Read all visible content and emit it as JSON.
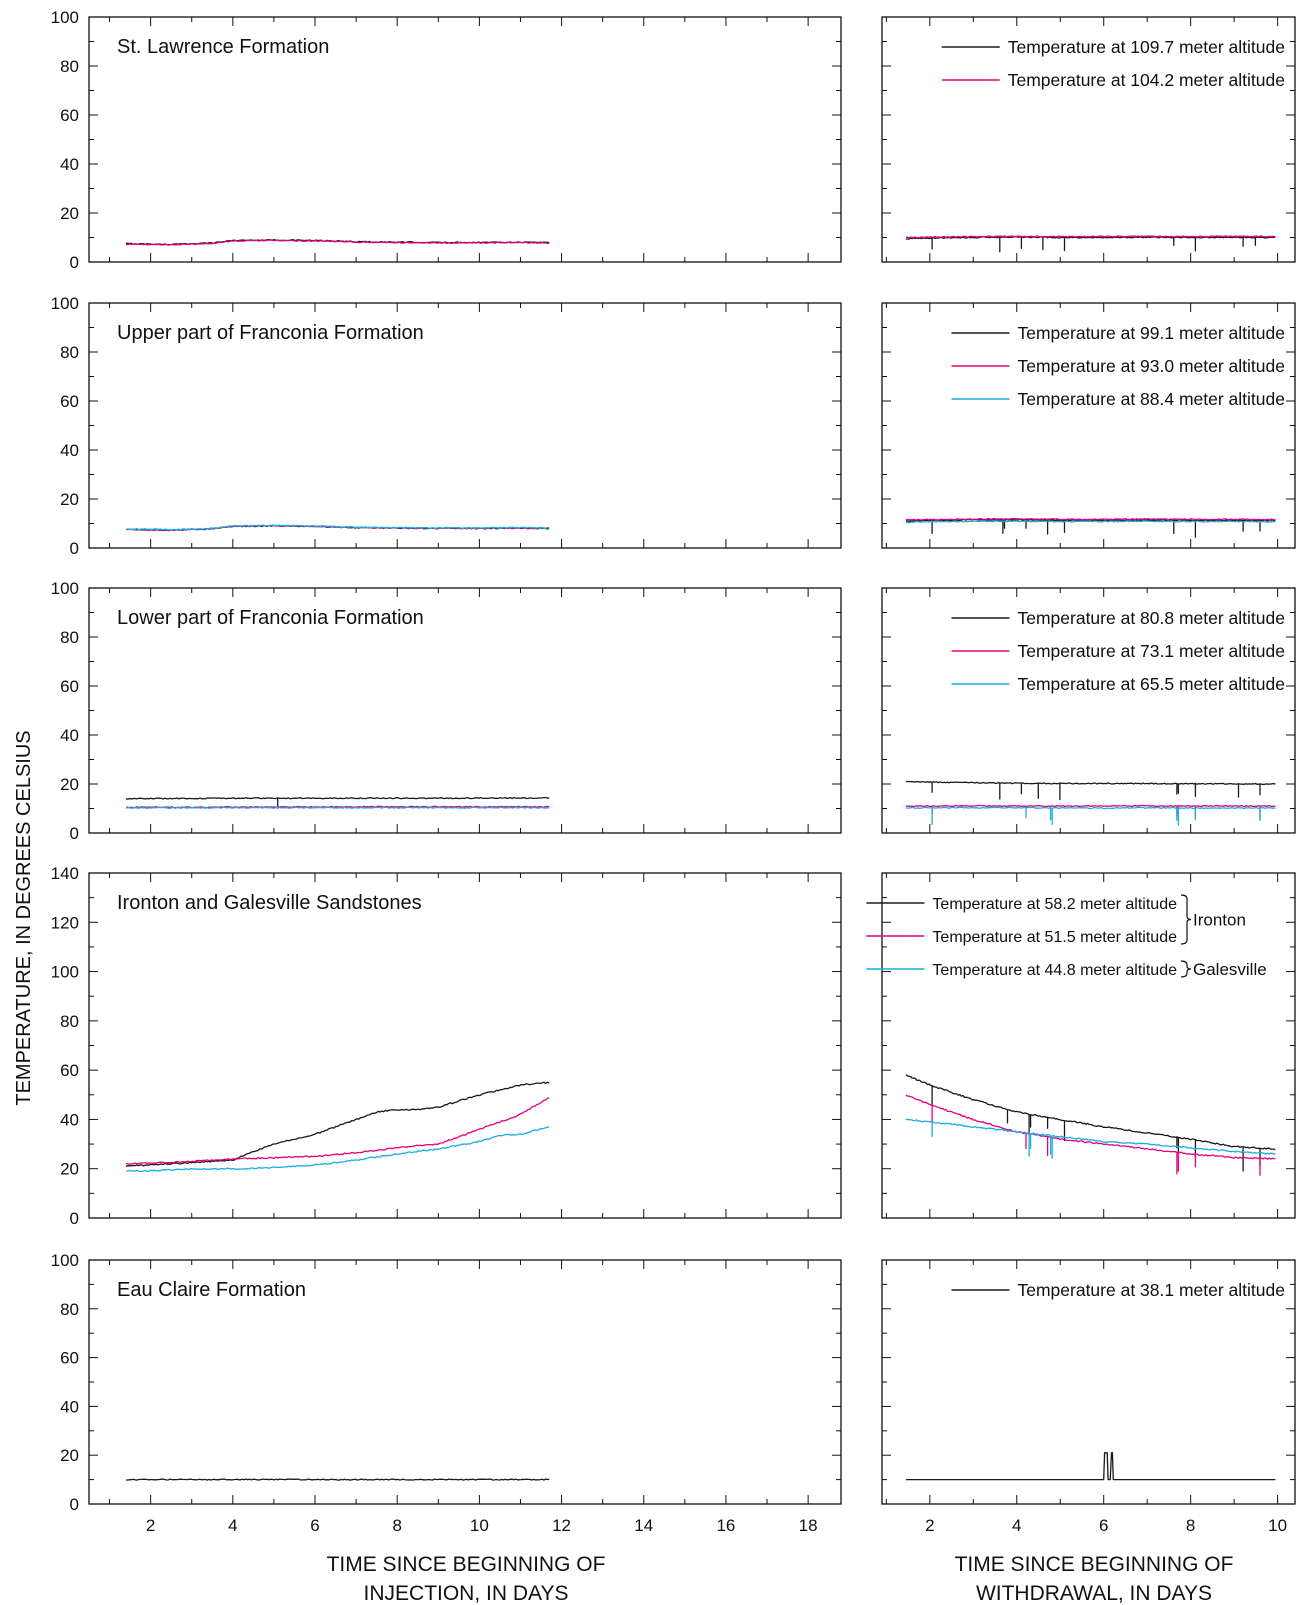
{
  "figure": {
    "y_axis_label": "TEMPERATURE, IN DEGREES CELSIUS",
    "x_label_left": [
      "TIME SINCE BEGINNING OF",
      "INJECTION, IN DAYS"
    ],
    "x_label_right": [
      "TIME SINCE BEGINNING OF",
      "WITHDRAWAL, IN DAYS"
    ],
    "colors": {
      "black": "#1a1a1a",
      "magenta": "#e6007e",
      "cyan": "#1aaee0"
    }
  },
  "chart_data": [
    {
      "type": "line",
      "title": "St. Lawrence Formation",
      "phase": "injection",
      "xlim": [
        0.5,
        18.8
      ],
      "ylim": [
        0,
        100
      ],
      "xticks": [
        2,
        4,
        6,
        8,
        10,
        12,
        14,
        16,
        18
      ],
      "yticks": [
        0,
        20,
        40,
        60,
        80,
        100
      ],
      "series": [
        {
          "name": "Temperature at 109.7 meter altitude",
          "color": "black",
          "x": [
            1.4,
            2.5,
            3.5,
            4.0,
            5.0,
            6.0,
            7.0,
            8.0,
            9.0,
            10.0,
            11.0,
            11.7
          ],
          "y": [
            7.5,
            7.2,
            7.8,
            8.8,
            9.0,
            8.8,
            8.3,
            8.1,
            8.0,
            8.0,
            8.1,
            8.0
          ]
        },
        {
          "name": "Temperature at 104.2 meter altitude",
          "color": "magenta",
          "x": [
            1.4,
            2.5,
            3.5,
            4.0,
            5.0,
            6.0,
            7.0,
            8.0,
            9.0,
            10.0,
            11.0,
            11.7
          ],
          "y": [
            7.3,
            7.0,
            7.6,
            8.6,
            8.8,
            8.6,
            8.1,
            7.9,
            7.8,
            7.8,
            7.9,
            7.8
          ]
        }
      ]
    },
    {
      "type": "line",
      "phase": "withdrawal",
      "xlim": [
        0.9,
        10.4
      ],
      "ylim": [
        0,
        100
      ],
      "xticks": [
        2,
        4,
        6,
        8,
        10
      ],
      "yticks": [
        0,
        20,
        40,
        60,
        80,
        100
      ],
      "legend_position": "top-right",
      "series": [
        {
          "name": "Temperature at 109.7 meter altitude",
          "color": "black",
          "x": [
            1.45,
            2.0,
            3.0,
            4.0,
            5.0,
            6.0,
            7.0,
            8.0,
            9.0,
            9.95
          ],
          "y": [
            9.5,
            9.8,
            10.0,
            10.2,
            10.0,
            10.0,
            10.1,
            10.0,
            10.1,
            10.0
          ],
          "dips": [
            2.05,
            3.6,
            4.1,
            4.6,
            5.1,
            7.6,
            8.1,
            9.2,
            9.5
          ]
        },
        {
          "name": "Temperature at 104.2 meter altitude",
          "color": "magenta",
          "x": [
            1.45,
            2.0,
            3.0,
            4.0,
            5.0,
            6.0,
            7.0,
            8.0,
            9.0,
            9.95
          ],
          "y": [
            10.0,
            10.2,
            10.3,
            10.5,
            10.4,
            10.4,
            10.5,
            10.4,
            10.5,
            10.4
          ]
        }
      ]
    },
    {
      "type": "line",
      "title": "Upper part of Franconia Formation",
      "phase": "injection",
      "xlim": [
        0.5,
        18.8
      ],
      "ylim": [
        0,
        100
      ],
      "xticks": [
        2,
        4,
        6,
        8,
        10,
        12,
        14,
        16,
        18
      ],
      "yticks": [
        0,
        20,
        40,
        60,
        80,
        100
      ],
      "series": [
        {
          "name": "Temperature at 99.1 meter altitude",
          "color": "black",
          "x": [
            1.4,
            2.5,
            3.5,
            4.0,
            5.0,
            6.0,
            7.0,
            8.0,
            9.0,
            10.0,
            11.0,
            11.7
          ],
          "y": [
            7.5,
            7.2,
            7.8,
            8.8,
            9.0,
            8.8,
            8.3,
            8.1,
            8.0,
            8.0,
            8.1,
            8.0
          ]
        },
        {
          "name": "Temperature at 93.0 meter altitude",
          "color": "magenta",
          "x": [
            1.4,
            2.5,
            3.5,
            4.0,
            5.0,
            6.0,
            7.0,
            8.0,
            9.0,
            10.0,
            11.0,
            11.7
          ],
          "y": [
            7.6,
            7.3,
            7.9,
            8.9,
            9.1,
            8.9,
            8.4,
            8.2,
            8.1,
            8.1,
            8.2,
            8.1
          ]
        },
        {
          "name": "Temperature at 88.4 meter altitude",
          "color": "cyan",
          "x": [
            1.4,
            2.5,
            3.5,
            4.0,
            5.0,
            6.0,
            7.0,
            8.0,
            9.0,
            10.0,
            11.0,
            11.7
          ],
          "y": [
            7.8,
            7.5,
            8.0,
            9.0,
            9.2,
            9.0,
            8.5,
            8.3,
            8.2,
            8.2,
            8.3,
            8.2
          ]
        }
      ]
    },
    {
      "type": "line",
      "phase": "withdrawal",
      "xlim": [
        0.9,
        10.4
      ],
      "ylim": [
        0,
        100
      ],
      "xticks": [
        2,
        4,
        6,
        8,
        10
      ],
      "yticks": [
        0,
        20,
        40,
        60,
        80,
        100
      ],
      "legend_position": "top-right",
      "series": [
        {
          "name": "Temperature at 99.1 meter altitude",
          "color": "black",
          "x": [
            1.45,
            2.0,
            3.0,
            4.0,
            5.0,
            6.0,
            7.0,
            8.0,
            9.0,
            9.95
          ],
          "y": [
            11.0,
            11.2,
            11.5,
            11.5,
            11.3,
            11.3,
            11.4,
            11.3,
            11.3,
            11.2
          ],
          "dips": [
            2.05,
            3.7,
            4.2,
            4.7,
            5.1,
            7.6,
            8.1,
            9.2,
            9.6
          ]
        },
        {
          "name": "Temperature at 93.0 meter altitude",
          "color": "magenta",
          "x": [
            1.45,
            2.0,
            3.0,
            4.0,
            5.0,
            6.0,
            7.0,
            8.0,
            9.0,
            9.95
          ],
          "y": [
            11.5,
            11.6,
            11.8,
            11.9,
            11.7,
            11.7,
            11.8,
            11.7,
            11.7,
            11.6
          ]
        },
        {
          "name": "Temperature at 88.4 meter altitude",
          "color": "cyan",
          "x": [
            1.45,
            2.0,
            3.0,
            4.0,
            5.0,
            6.0,
            7.0,
            8.0,
            9.0,
            9.95
          ],
          "y": [
            10.5,
            10.7,
            10.9,
            10.9,
            10.8,
            10.8,
            10.9,
            10.8,
            10.8,
            10.7
          ]
        }
      ]
    },
    {
      "type": "line",
      "title": "Lower part of Franconia Formation",
      "phase": "injection",
      "xlim": [
        0.5,
        18.8
      ],
      "ylim": [
        0,
        100
      ],
      "xticks": [
        2,
        4,
        6,
        8,
        10,
        12,
        14,
        16,
        18
      ],
      "yticks": [
        0,
        20,
        40,
        60,
        80,
        100
      ],
      "series": [
        {
          "name": "Temperature at 80.8 meter altitude",
          "color": "black",
          "x": [
            1.4,
            4.0,
            8.0,
            11.7
          ],
          "y": [
            14.0,
            14.2,
            14.2,
            14.3
          ],
          "dips": [
            5.1
          ]
        },
        {
          "name": "Temperature at 73.1 meter altitude",
          "color": "magenta",
          "x": [
            1.4,
            4.0,
            8.0,
            11.7
          ],
          "y": [
            10.5,
            10.6,
            10.7,
            10.7
          ]
        },
        {
          "name": "Temperature at 65.5 meter altitude",
          "color": "cyan",
          "x": [
            1.4,
            4.0,
            8.0,
            11.7
          ],
          "y": [
            10.2,
            10.3,
            10.3,
            10.3
          ]
        }
      ]
    },
    {
      "type": "line",
      "phase": "withdrawal",
      "xlim": [
        0.9,
        10.4
      ],
      "ylim": [
        0,
        100
      ],
      "xticks": [
        2,
        4,
        6,
        8,
        10
      ],
      "yticks": [
        0,
        20,
        40,
        60,
        80,
        100
      ],
      "legend_position": "top-right",
      "series": [
        {
          "name": "Temperature at 80.8 meter altitude",
          "color": "black",
          "x": [
            1.45,
            2.0,
            3.0,
            4.0,
            5.0,
            6.0,
            7.0,
            8.0,
            9.0,
            9.95
          ],
          "y": [
            21.0,
            20.8,
            20.5,
            20.3,
            20.2,
            20.2,
            20.2,
            20.1,
            20.1,
            20.0
          ],
          "dips": [
            2.05,
            3.6,
            4.1,
            4.5,
            5.0,
            7.7,
            8.1,
            9.1,
            9.6
          ]
        },
        {
          "name": "Temperature at 73.1 meter altitude",
          "color": "magenta",
          "x": [
            1.45,
            2.0,
            3.0,
            4.0,
            5.0,
            6.0,
            7.0,
            8.0,
            9.0,
            9.95
          ],
          "y": [
            11.0,
            11.0,
            11.1,
            11.0,
            11.0,
            11.0,
            11.1,
            11.0,
            11.0,
            11.0
          ],
          "dips": [
            2.05,
            7.7,
            8.1,
            9.6
          ]
        },
        {
          "name": "Temperature at 65.5 meter altitude",
          "color": "cyan",
          "x": [
            1.45,
            2.0,
            3.0,
            4.0,
            5.0,
            6.0,
            7.0,
            8.0,
            9.0,
            9.95
          ],
          "y": [
            10.2,
            10.3,
            10.3,
            10.3,
            10.2,
            10.2,
            10.3,
            10.2,
            10.2,
            10.2
          ],
          "dips": [
            2.05,
            4.2,
            4.8,
            7.7,
            8.1,
            9.6
          ]
        }
      ]
    },
    {
      "type": "line",
      "title": "Ironton and Galesville Sandstones",
      "phase": "injection",
      "xlim": [
        0.5,
        18.8
      ],
      "ylim": [
        0,
        140
      ],
      "xticks": [
        2,
        4,
        6,
        8,
        10,
        12,
        14,
        16,
        18
      ],
      "yticks": [
        0,
        20,
        40,
        60,
        80,
        100,
        120,
        140
      ],
      "series": [
        {
          "name": "Temperature at 58.2 meter altitude",
          "color": "black",
          "x": [
            1.4,
            2.0,
            3.0,
            4.0,
            4.5,
            5.0,
            6.0,
            7.0,
            7.5,
            8.0,
            8.5,
            9.0,
            10.0,
            11.0,
            11.7
          ],
          "y": [
            21.0,
            21.5,
            22.5,
            23.5,
            27.0,
            30.0,
            34.0,
            40.0,
            43.0,
            44.0,
            44.0,
            45.0,
            50.0,
            54.0,
            55.0
          ]
        },
        {
          "name": "Temperature at 51.5 meter altitude",
          "color": "magenta",
          "x": [
            1.4,
            2.0,
            3.0,
            4.0,
            5.0,
            6.0,
            7.0,
            8.0,
            9.0,
            10.0,
            11.0,
            11.7
          ],
          "y": [
            22.0,
            22.3,
            23.0,
            24.0,
            24.5,
            25.0,
            26.5,
            28.5,
            30.0,
            36.0,
            42.0,
            49.0
          ]
        },
        {
          "name": "Temperature at 44.8 meter altitude",
          "color": "cyan",
          "x": [
            1.4,
            2.0,
            3.0,
            4.0,
            5.0,
            6.0,
            7.0,
            8.0,
            9.0,
            10.0,
            10.5,
            11.0,
            11.7
          ],
          "y": [
            19.0,
            19.2,
            19.8,
            20.0,
            20.5,
            21.5,
            23.5,
            26.0,
            28.0,
            31.0,
            33.5,
            34.0,
            37.0
          ]
        }
      ]
    },
    {
      "type": "line",
      "phase": "withdrawal",
      "xlim": [
        0.9,
        10.4
      ],
      "ylim": [
        0,
        140
      ],
      "xticks": [
        2,
        4,
        6,
        8,
        10
      ],
      "yticks": [
        0,
        20,
        40,
        60,
        80,
        100,
        120,
        140
      ],
      "legend_position": "top-right",
      "legend_groups": [
        {
          "label": "Ironton",
          "series": [
            0,
            1
          ]
        },
        {
          "label": "Galesville",
          "series": [
            2
          ]
        }
      ],
      "series": [
        {
          "name": "Temperature at 58.2 meter altitude",
          "color": "black",
          "x": [
            1.45,
            2.0,
            3.0,
            4.0,
            5.0,
            6.0,
            7.0,
            8.0,
            9.0,
            9.95
          ],
          "y": [
            58.0,
            54.0,
            48.0,
            43.0,
            40.0,
            37.0,
            34.5,
            32.0,
            29.0,
            28.0
          ],
          "dips": [
            2.05,
            3.8,
            4.3,
            4.7,
            5.1,
            7.7,
            8.1,
            9.2,
            9.6
          ]
        },
        {
          "name": "Temperature at 51.5 meter altitude",
          "color": "magenta",
          "x": [
            1.45,
            2.0,
            3.0,
            4.0,
            5.0,
            6.0,
            7.0,
            8.0,
            9.0,
            9.95
          ],
          "y": [
            50.0,
            46.0,
            40.0,
            35.0,
            32.0,
            30.0,
            28.0,
            26.0,
            24.5,
            24.0
          ],
          "dips": [
            2.05,
            4.2,
            4.7,
            7.7,
            8.1,
            9.6
          ]
        },
        {
          "name": "Temperature at 44.8 meter altitude",
          "color": "cyan",
          "x": [
            1.45,
            2.0,
            3.0,
            4.0,
            5.0,
            6.0,
            7.0,
            8.0,
            9.0,
            9.95
          ],
          "y": [
            40.0,
            39.0,
            37.0,
            35.0,
            33.0,
            31.0,
            30.0,
            28.5,
            27.0,
            26.0
          ],
          "dips": [
            2.05,
            4.3,
            4.8
          ]
        }
      ]
    },
    {
      "type": "line",
      "title": "Eau Claire Formation",
      "phase": "injection",
      "xlim": [
        0.5,
        18.8
      ],
      "ylim": [
        0,
        100
      ],
      "xticks": [
        2,
        4,
        6,
        8,
        10,
        12,
        14,
        16,
        18
      ],
      "yticks": [
        0,
        20,
        40,
        60,
        80,
        100
      ],
      "series": [
        {
          "name": "Temperature at 38.1 meter altitude",
          "color": "black",
          "x": [
            1.4,
            11.7
          ],
          "y": [
            10.0,
            10.0
          ]
        }
      ]
    },
    {
      "type": "line",
      "phase": "withdrawal",
      "xlim": [
        0.9,
        10.4
      ],
      "ylim": [
        0,
        100
      ],
      "xticks": [
        2,
        4,
        6,
        8,
        10
      ],
      "yticks": [
        0,
        20,
        40,
        60,
        80,
        100
      ],
      "legend_position": "top-right",
      "series": [
        {
          "name": "Temperature at 38.1 meter altitude",
          "color": "black",
          "x": [
            1.45,
            6.0,
            6.02,
            6.08,
            6.1,
            6.15,
            6.18,
            6.2,
            6.22,
            9.95
          ],
          "y": [
            10.0,
            10.0,
            21.0,
            21.0,
            10.0,
            10.0,
            21.0,
            21.0,
            10.0,
            10.0
          ]
        }
      ]
    }
  ]
}
